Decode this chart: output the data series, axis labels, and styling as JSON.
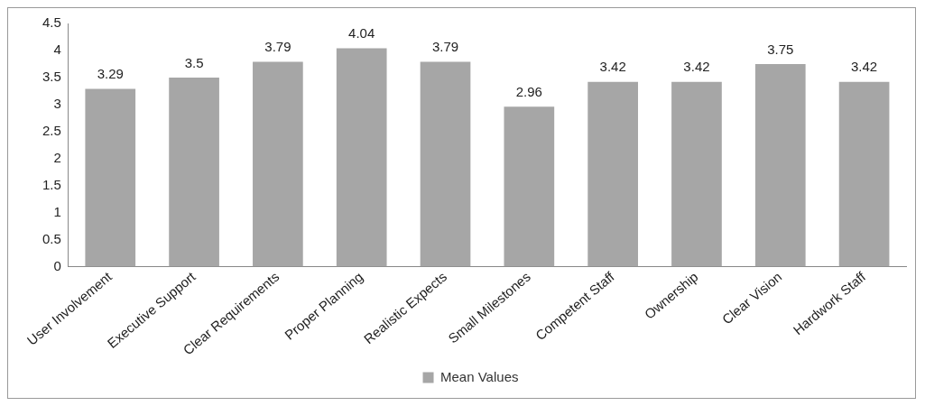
{
  "chart_data": {
    "type": "bar",
    "categories": [
      "User Involvement",
      "Executive Support",
      "Clear Requirements",
      "Proper Planning",
      "Realistic Expects",
      "Small Milestones",
      "Competent Staff",
      "Ownership",
      "Clear Vision",
      "Hardwork Staff"
    ],
    "series": [
      {
        "name": "Mean Values",
        "color": "#a6a6a6",
        "values": [
          3.29,
          3.5,
          3.79,
          4.04,
          3.79,
          2.96,
          3.42,
          3.42,
          3.75,
          3.42
        ]
      }
    ],
    "ylim": [
      0,
      4.5
    ],
    "yticks": [
      0,
      0.5,
      1,
      1.5,
      2,
      2.5,
      3,
      3.5,
      4,
      4.5
    ],
    "grid": false,
    "legend": "bottom",
    "data_labels": true
  }
}
